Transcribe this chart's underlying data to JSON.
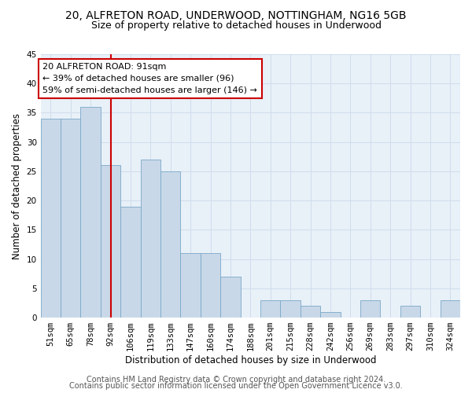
{
  "title": "20, ALFRETON ROAD, UNDERWOOD, NOTTINGHAM, NG16 5GB",
  "subtitle": "Size of property relative to detached houses in Underwood",
  "xlabel": "Distribution of detached houses by size in Underwood",
  "ylabel": "Number of detached properties",
  "categories": [
    "51sqm",
    "65sqm",
    "78sqm",
    "92sqm",
    "106sqm",
    "119sqm",
    "133sqm",
    "147sqm",
    "160sqm",
    "174sqm",
    "188sqm",
    "201sqm",
    "215sqm",
    "228sqm",
    "242sqm",
    "256sqm",
    "269sqm",
    "283sqm",
    "297sqm",
    "310sqm",
    "324sqm"
  ],
  "values": [
    34,
    34,
    36,
    26,
    19,
    27,
    25,
    11,
    11,
    7,
    0,
    3,
    3,
    2,
    1,
    0,
    3,
    0,
    2,
    0,
    3
  ],
  "bar_color": "#c8d8e8",
  "bar_edge_color": "#7aa8c8",
  "property_line_x": 3,
  "property_line_label": "20 ALFRETON ROAD: 91sqm",
  "annotation_line1": "← 39% of detached houses are smaller (96)",
  "annotation_line2": "59% of semi-detached houses are larger (146) →",
  "annotation_box_color": "#cc0000",
  "ylim": [
    0,
    45
  ],
  "yticks": [
    0,
    5,
    10,
    15,
    20,
    25,
    30,
    35,
    40,
    45
  ],
  "footer_line1": "Contains HM Land Registry data © Crown copyright and database right 2024.",
  "footer_line2": "Contains public sector information licensed under the Open Government Licence v3.0.",
  "background_color": "#ffffff",
  "grid_color": "#d0dded",
  "title_fontsize": 10,
  "subtitle_fontsize": 9,
  "axis_fontsize": 8.5,
  "tick_fontsize": 7.5,
  "footer_fontsize": 7,
  "annotation_fontsize": 8
}
